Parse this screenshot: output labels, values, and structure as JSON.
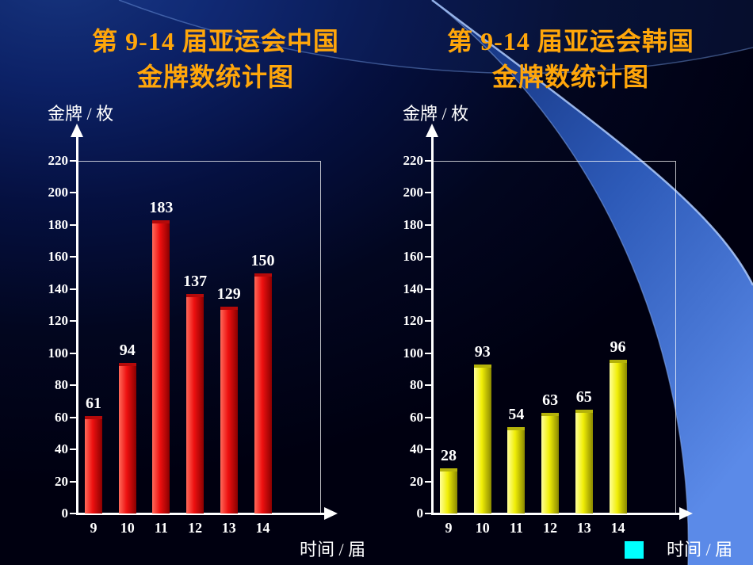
{
  "chart_data": [
    {
      "type": "bar",
      "title": "第 9-14 届亚运会中国金牌数统计图",
      "title_lines": [
        "第 9-14 届亚运会中国",
        "金牌数统计图"
      ],
      "ylabel": "金牌 / 枚",
      "xlabel": "时间 / 届",
      "categories": [
        "9",
        "10",
        "11",
        "12",
        "13",
        "14"
      ],
      "values": [
        61,
        94,
        183,
        137,
        129,
        150
      ],
      "ylim": [
        0,
        220
      ],
      "ytick_step": 20,
      "grid": false,
      "legend_position": "none",
      "bar_color": "#ee1010",
      "bar_color_light": "#ff6a5a",
      "bar_color_dark": "#8a0000",
      "bar_color_top": "#b40a0a"
    },
    {
      "type": "bar",
      "title": "第 9-14 届亚运会韩国金牌数统计图",
      "title_lines": [
        "第 9-14 届亚运会韩国",
        "金牌数统计图"
      ],
      "ylabel": "金牌 / 枚",
      "xlabel": "时间 / 届",
      "categories": [
        "9",
        "10",
        "11",
        "12",
        "13",
        "14"
      ],
      "values": [
        28,
        93,
        54,
        63,
        65,
        96
      ],
      "ylim": [
        0,
        220
      ],
      "ytick_step": 20,
      "grid": false,
      "legend_position": "none",
      "bar_color": "#f0ee06",
      "bar_color_light": "#ffff9a",
      "bar_color_dark": "#8a8800",
      "bar_color_top": "#b4b20a"
    }
  ],
  "colors": {
    "title_text": "#ffa60a",
    "axis": "#ffffff",
    "tick_text": "#ffffff",
    "value_text": "#ffffff",
    "background_dark": "#01041c",
    "swoosh_light": "#5b8ae8",
    "legend_swatch": "#00ffff"
  }
}
